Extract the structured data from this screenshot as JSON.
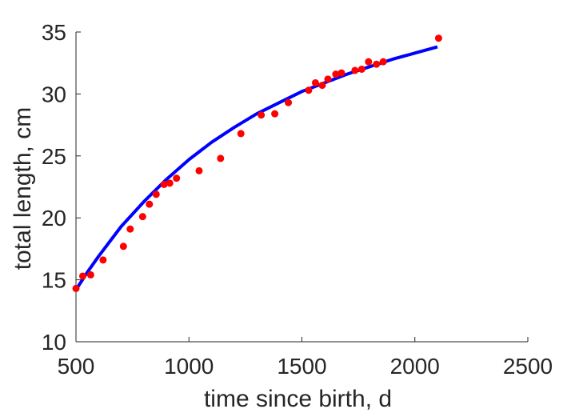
{
  "chart_data": {
    "type": "scatter",
    "title": "",
    "xlabel": "time since birth, d",
    "ylabel": "total length, cm",
    "xlim": [
      500,
      2500
    ],
    "ylim": [
      10,
      35
    ],
    "xticks": [
      500,
      1000,
      1500,
      2000,
      2500
    ],
    "yticks": [
      10,
      15,
      20,
      25,
      30,
      35
    ],
    "xtick_labels": [
      "500",
      "1000",
      "1500",
      "2000",
      "2500"
    ],
    "ytick_labels": [
      "10",
      "15",
      "20",
      "25",
      "30",
      "35"
    ],
    "grid": false,
    "legend": "none",
    "series": [
      {
        "kind": "scatter",
        "color": "#ff0000",
        "x": [
          500,
          530,
          565,
          620,
          710,
          740,
          795,
          825,
          855,
          890,
          915,
          945,
          1045,
          1140,
          1230,
          1320,
          1380,
          1440,
          1530,
          1560,
          1590,
          1615,
          1650,
          1675,
          1735,
          1765,
          1795,
          1830,
          1860,
          2105
        ],
        "y": [
          14.3,
          15.3,
          15.4,
          16.6,
          17.7,
          19.1,
          20.1,
          21.1,
          21.9,
          22.7,
          22.8,
          23.2,
          23.8,
          24.8,
          26.8,
          28.3,
          28.4,
          29.3,
          30.3,
          30.9,
          30.7,
          31.2,
          31.6,
          31.7,
          31.9,
          32.0,
          32.6,
          32.4,
          32.6,
          34.5
        ]
      },
      {
        "kind": "line",
        "color": "#0000ff",
        "x": [
          500,
          550,
          600,
          700,
          800,
          900,
          1000,
          1100,
          1200,
          1300,
          1400,
          1500,
          1600,
          1700,
          1800,
          1900,
          2000,
          2100
        ],
        "y": [
          14.2,
          15.6,
          16.9,
          19.3,
          21.3,
          23.1,
          24.7,
          26.1,
          27.3,
          28.4,
          29.3,
          30.2,
          30.9,
          31.6,
          32.2,
          32.8,
          33.3,
          33.8
        ]
      }
    ]
  }
}
